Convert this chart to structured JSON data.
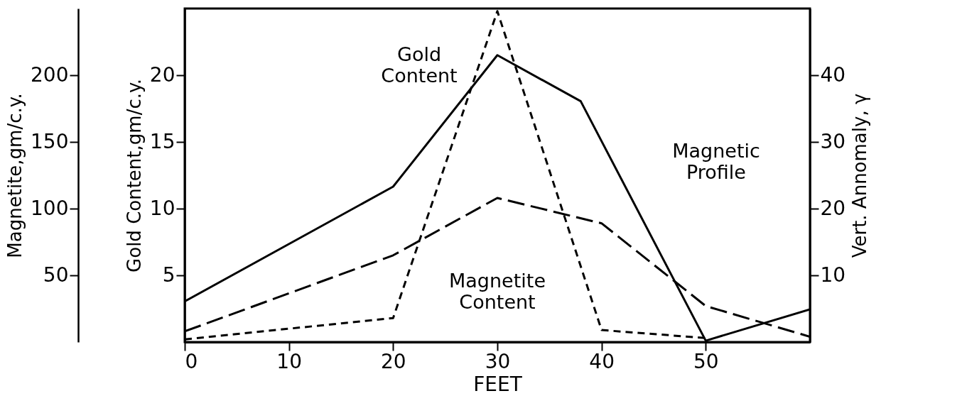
{
  "chart_data": {
    "type": "line",
    "xlabel": "FEET",
    "ylabel": "Gold Content,gm/c.y.",
    "y2label": "Vert. Annomaly, γ",
    "y3label": "Magnetite,gm/c.y.",
    "xlim": [
      0,
      60
    ],
    "xticks": [
      0,
      10,
      20,
      30,
      40,
      50
    ],
    "ylim": [
      0,
      25
    ],
    "yticks": [
      5,
      10,
      15,
      20
    ],
    "y2lim": [
      0,
      50
    ],
    "y2ticks": [
      10,
      20,
      30,
      40
    ],
    "y3lim": [
      0,
      250
    ],
    "y3ticks": [
      50,
      100,
      150,
      200
    ],
    "grid": false,
    "legend": false,
    "marker": "none",
    "series": [
      {
        "color": "#000000",
        "axis": "y2",
        "line_style": "solid",
        "x": [
          0,
          20,
          30,
          38,
          50,
          60
        ],
        "values": [
          6.1,
          23.3,
          43,
          36.1,
          0.2,
          4.9
        ]
      },
      {
        "color": "#000000",
        "axis": "y",
        "line_style": "dashed",
        "x": [
          0,
          20,
          30,
          40,
          50
        ],
        "values": [
          0.2,
          1.8,
          24.8,
          0.9,
          0.3
        ]
      },
      {
        "color": "#000000",
        "axis": "y3",
        "line_style": "dashed",
        "x": [
          0,
          20,
          30,
          40,
          50,
          60
        ],
        "values": [
          8,
          65,
          108,
          89,
          27,
          4
        ]
      }
    ],
    "annotations": [
      "Gold Content",
      "Magnetic Profile",
      "Magnetite Content"
    ]
  }
}
